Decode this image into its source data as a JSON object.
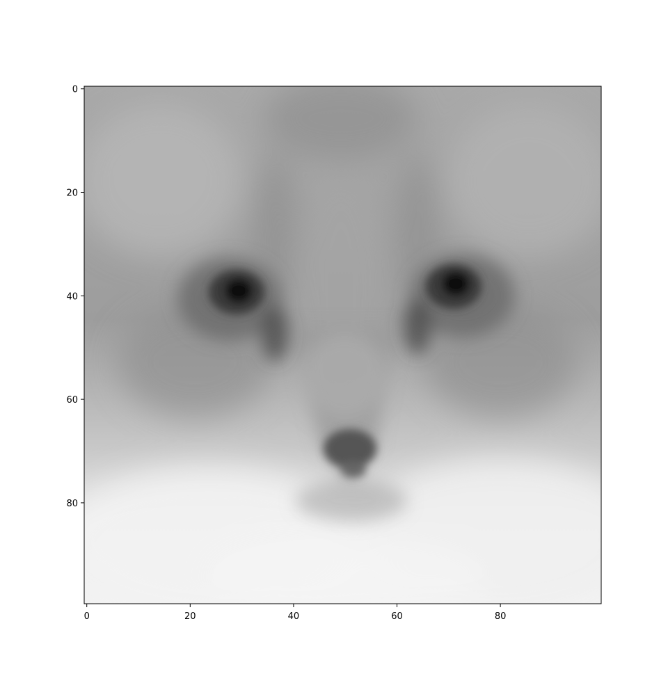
{
  "figure": {
    "background": "#ffffff",
    "axes_frame_color": "#000000",
    "image_description_icon": "grayscale-cat-face-image",
    "colormap": "gray"
  },
  "chart_data": {
    "type": "heatmap",
    "title": "",
    "xlabel": "",
    "ylabel": "",
    "xlim": [
      -0.5,
      99.5
    ],
    "ylim": [
      99.5,
      -0.5
    ],
    "y_inverted": true,
    "grid": false,
    "image_size": [
      100,
      100
    ],
    "x_ticks": [
      0,
      20,
      40,
      60,
      80
    ],
    "x_tick_labels": [
      "0",
      "20",
      "40",
      "60",
      "80"
    ],
    "y_ticks": [
      0,
      20,
      40,
      60,
      80
    ],
    "y_tick_labels": [
      "0",
      "20",
      "40",
      "60",
      "80"
    ]
  }
}
